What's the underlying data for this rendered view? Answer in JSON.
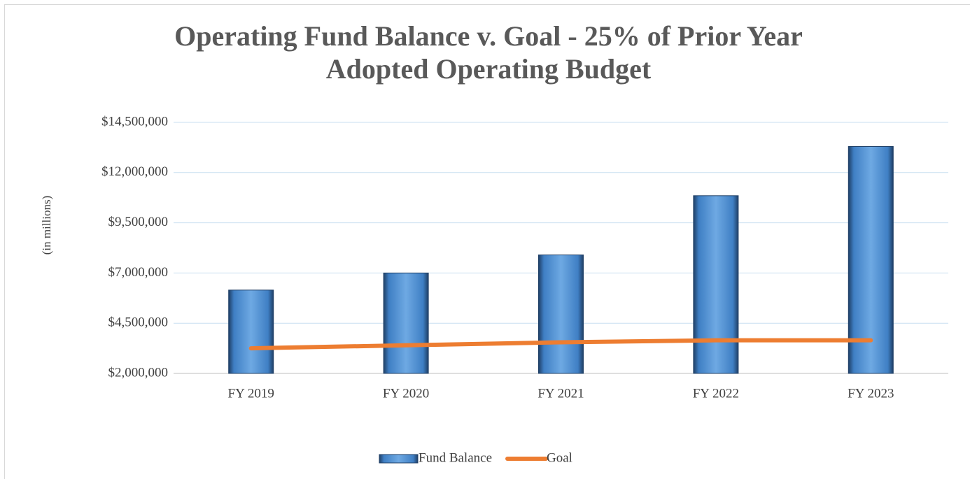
{
  "chart_data": {
    "type": "bar",
    "title": "Operating Fund Balance v. Goal - 25% of Prior Year Adopted Operating Budget",
    "y_label": "(in millions)",
    "categories": [
      "FY 2019",
      "FY 2020",
      "FY 2021",
      "FY 2022",
      "FY 2023"
    ],
    "series": [
      {
        "name": "Fund Balance",
        "type": "bar",
        "color": "#5b9bd5",
        "values": [
          6150000,
          7000000,
          7900000,
          10850000,
          13300000
        ]
      },
      {
        "name": "Goal",
        "type": "line",
        "color": "#ed7d31",
        "values": [
          3250000,
          3400000,
          3550000,
          3650000,
          3650000
        ]
      }
    ],
    "ylim": [
      2000000,
      14500000
    ],
    "yticks": [
      {
        "value": 2000000,
        "label": "$2,000,000"
      },
      {
        "value": 4500000,
        "label": "$4,500,000"
      },
      {
        "value": 7000000,
        "label": "$7,000,000"
      },
      {
        "value": 9500000,
        "label": "$9,500,000"
      },
      {
        "value": 12000000,
        "label": "$12,000,000"
      },
      {
        "value": 14500000,
        "label": "$14,500,000"
      }
    ],
    "grid": true,
    "legend": "bottom"
  }
}
